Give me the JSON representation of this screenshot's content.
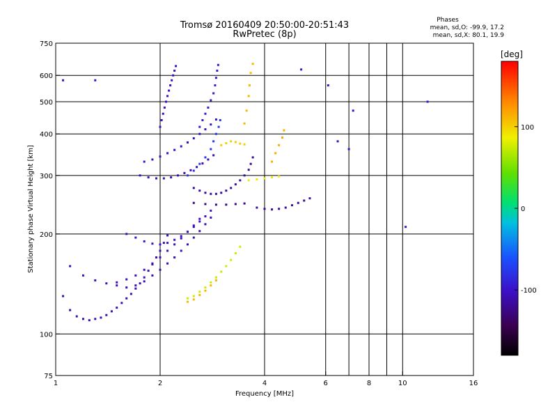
{
  "header": {
    "title_line1": "Tromsø 20160409 20:50:00-20:51:43",
    "title_line2": "RwPretec (8p)",
    "stats_heading": "Phases",
    "stats_o": "mean, sd,O: -99.9, 17.2",
    "stats_x": "mean, sd,X: 80.1, 19.9"
  },
  "chart_data": {
    "type": "scatter",
    "xlabel": "Frequency [MHz]",
    "ylabel": "Stationary phase Virtual Height [km]",
    "x_scale": "log",
    "y_scale": "log",
    "xlim": [
      1,
      16
    ],
    "ylim": [
      75,
      750
    ],
    "x_ticks": [
      1,
      2,
      4,
      6,
      8,
      10,
      16
    ],
    "x_tick_labels": [
      "1",
      "2",
      "4",
      "6",
      "8",
      "10",
      "16"
    ],
    "x_gridlines": [
      2,
      4,
      6,
      7,
      8,
      9,
      10
    ],
    "y_ticks": [
      75,
      100,
      200,
      300,
      400,
      500,
      600,
      750
    ],
    "y_tick_labels": [
      "75",
      "100",
      "200",
      "300",
      "400",
      "500",
      "600",
      "750"
    ],
    "y_gridlines": [
      100,
      200,
      300,
      400,
      500,
      600
    ],
    "grid": true,
    "colorbar": {
      "label": "[deg]",
      "range": [
        -180,
        180
      ],
      "ticks": [
        100,
        0,
        -100
      ],
      "tick_labels": [
        "100",
        "0",
        "-100"
      ]
    },
    "series": [
      {
        "phase": -110,
        "points": [
          [
            1.05,
            130
          ],
          [
            1.1,
            118
          ],
          [
            1.15,
            113
          ],
          [
            1.2,
            111
          ],
          [
            1.25,
            110
          ],
          [
            1.3,
            111
          ],
          [
            1.35,
            112
          ],
          [
            1.4,
            114
          ],
          [
            1.45,
            117
          ],
          [
            1.5,
            120
          ],
          [
            1.55,
            124
          ],
          [
            1.6,
            128
          ],
          [
            1.65,
            132
          ],
          [
            1.7,
            137
          ],
          [
            1.75,
            142
          ],
          [
            1.8,
            148
          ],
          [
            1.85,
            155
          ],
          [
            1.9,
            162
          ],
          [
            1.95,
            170
          ],
          [
            2.0,
            178
          ],
          [
            2.05,
            188
          ],
          [
            2.1,
            198
          ]
        ]
      },
      {
        "phase": -105,
        "points": [
          [
            1.1,
            160
          ],
          [
            1.2,
            150
          ],
          [
            1.3,
            145
          ],
          [
            1.4,
            142
          ],
          [
            1.5,
            143
          ],
          [
            1.6,
            146
          ],
          [
            1.7,
            150
          ],
          [
            1.8,
            156
          ],
          [
            1.9,
            163
          ],
          [
            2.0,
            170
          ],
          [
            2.1,
            178
          ],
          [
            2.2,
            186
          ],
          [
            2.3,
            194
          ],
          [
            2.4,
            203
          ],
          [
            2.5,
            212
          ],
          [
            2.6,
            222
          ]
        ]
      },
      {
        "phase": -108,
        "points": [
          [
            1.5,
            140
          ],
          [
            1.6,
            138
          ],
          [
            1.7,
            140
          ],
          [
            1.8,
            144
          ],
          [
            1.9,
            150
          ],
          [
            2.0,
            156
          ],
          [
            2.1,
            163
          ],
          [
            2.2,
            170
          ],
          [
            2.3,
            178
          ],
          [
            2.4,
            186
          ],
          [
            2.5,
            195
          ],
          [
            2.6,
            204
          ],
          [
            2.7,
            214
          ],
          [
            2.8,
            224
          ]
        ]
      },
      {
        "phase": -102,
        "points": [
          [
            1.6,
            200
          ],
          [
            1.7,
            195
          ],
          [
            1.8,
            190
          ],
          [
            1.9,
            187
          ],
          [
            2.0,
            186
          ],
          [
            2.1,
            188
          ],
          [
            2.2,
            192
          ],
          [
            2.3,
            197
          ],
          [
            2.4,
            203
          ],
          [
            2.5,
            210
          ],
          [
            2.6,
            218
          ],
          [
            2.7,
            226
          ],
          [
            2.8,
            235
          ]
        ]
      },
      {
        "phase": -106,
        "points": [
          [
            1.75,
            300
          ],
          [
            1.85,
            296
          ],
          [
            1.95,
            294
          ],
          [
            2.05,
            294
          ],
          [
            2.15,
            296
          ],
          [
            2.25,
            300
          ],
          [
            2.35,
            305
          ],
          [
            2.45,
            311
          ],
          [
            2.55,
            318
          ],
          [
            2.65,
            326
          ],
          [
            2.75,
            335
          ],
          [
            2.85,
            345
          ]
        ]
      },
      {
        "phase": -103,
        "points": [
          [
            1.8,
            330
          ],
          [
            1.9,
            335
          ],
          [
            2.0,
            342
          ],
          [
            2.1,
            350
          ],
          [
            2.2,
            358
          ],
          [
            2.3,
            367
          ],
          [
            2.4,
            377
          ],
          [
            2.5,
            388
          ],
          [
            2.6,
            400
          ],
          [
            2.7,
            413
          ],
          [
            2.8,
            427
          ],
          [
            2.9,
            442
          ]
        ]
      },
      {
        "phase": -104,
        "points": [
          [
            2.0,
            420
          ],
          [
            2.02,
            440
          ],
          [
            2.04,
            460
          ],
          [
            2.06,
            480
          ],
          [
            2.08,
            500
          ],
          [
            2.1,
            520
          ],
          [
            2.12,
            540
          ],
          [
            2.14,
            560
          ],
          [
            2.16,
            580
          ],
          [
            2.18,
            600
          ],
          [
            2.2,
            620
          ],
          [
            2.22,
            640
          ]
        ]
      },
      {
        "phase": -95,
        "points": [
          [
            2.6,
            420
          ],
          [
            2.65,
            440
          ],
          [
            2.7,
            460
          ],
          [
            2.75,
            480
          ],
          [
            2.8,
            505
          ],
          [
            2.85,
            530
          ],
          [
            2.88,
            560
          ],
          [
            2.9,
            590
          ],
          [
            2.92,
            620
          ],
          [
            2.94,
            645
          ]
        ]
      },
      {
        "phase": -75,
        "points": [
          [
            2.4,
            300
          ],
          [
            2.5,
            310
          ],
          [
            2.6,
            325
          ],
          [
            2.7,
            340
          ],
          [
            2.8,
            360
          ],
          [
            2.85,
            380
          ],
          [
            2.9,
            400
          ],
          [
            2.95,
            420
          ],
          [
            2.98,
            440
          ]
        ]
      },
      {
        "phase": -115,
        "points": [
          [
            2.5,
            275
          ],
          [
            2.6,
            270
          ],
          [
            2.7,
            266
          ],
          [
            2.8,
            264
          ],
          [
            2.9,
            264
          ],
          [
            3.0,
            266
          ],
          [
            3.1,
            270
          ],
          [
            3.2,
            275
          ],
          [
            3.3,
            282
          ],
          [
            3.4,
            290
          ],
          [
            3.5,
            300
          ],
          [
            3.6,
            312
          ],
          [
            3.65,
            325
          ],
          [
            3.7,
            340
          ]
        ]
      },
      {
        "phase": -125,
        "points": [
          [
            2.5,
            248
          ],
          [
            2.7,
            246
          ],
          [
            2.9,
            245
          ],
          [
            3.1,
            245
          ],
          [
            3.3,
            246
          ],
          [
            3.5,
            247
          ]
        ]
      },
      {
        "phase": -118,
        "points": [
          [
            3.8,
            240
          ],
          [
            4.0,
            238
          ],
          [
            4.2,
            237
          ],
          [
            4.4,
            238
          ],
          [
            4.6,
            240
          ],
          [
            4.8,
            244
          ],
          [
            5.0,
            248
          ],
          [
            5.2,
            252
          ],
          [
            5.4,
            256
          ]
        ]
      },
      {
        "phase": 100,
        "points": [
          [
            3.0,
            370
          ],
          [
            3.1,
            375
          ],
          [
            3.2,
            380
          ],
          [
            3.3,
            378
          ],
          [
            3.4,
            374
          ],
          [
            3.5,
            372
          ]
        ]
      },
      {
        "phase": 110,
        "points": [
          [
            3.5,
            430
          ],
          [
            3.55,
            470
          ],
          [
            3.6,
            520
          ],
          [
            3.62,
            560
          ],
          [
            3.65,
            610
          ],
          [
            3.7,
            650
          ]
        ]
      },
      {
        "phase": 90,
        "points": [
          [
            3.6,
            290
          ],
          [
            3.8,
            292
          ],
          [
            4.0,
            294
          ],
          [
            4.2,
            296
          ],
          [
            4.4,
            298
          ]
        ]
      },
      {
        "phase": 115,
        "points": [
          [
            4.2,
            330
          ],
          [
            4.3,
            350
          ],
          [
            4.4,
            370
          ],
          [
            4.5,
            390
          ],
          [
            4.55,
            410
          ]
        ]
      },
      {
        "phase": 75,
        "points": [
          [
            2.4,
            128
          ],
          [
            2.5,
            130
          ],
          [
            2.6,
            134
          ],
          [
            2.7,
            138
          ],
          [
            2.8,
            143
          ],
          [
            2.9,
            148
          ],
          [
            3.0,
            154
          ],
          [
            3.1,
            160
          ],
          [
            3.2,
            167
          ],
          [
            3.3,
            175
          ],
          [
            3.4,
            183
          ]
        ]
      },
      {
        "phase": 110,
        "points": [
          [
            2.4,
            125
          ],
          [
            2.5,
            127
          ],
          [
            2.6,
            131
          ],
          [
            2.7,
            135
          ],
          [
            2.8,
            140
          ],
          [
            2.9,
            145
          ]
        ]
      },
      {
        "phase": -100,
        "points": [
          [
            5.1,
            625
          ],
          [
            6.1,
            560
          ],
          [
            6.5,
            380
          ],
          [
            7.0,
            360
          ],
          [
            7.2,
            470
          ],
          [
            10.2,
            210
          ],
          [
            11.8,
            500
          ],
          [
            1.3,
            580
          ],
          [
            1.05,
            580
          ]
        ]
      }
    ]
  }
}
